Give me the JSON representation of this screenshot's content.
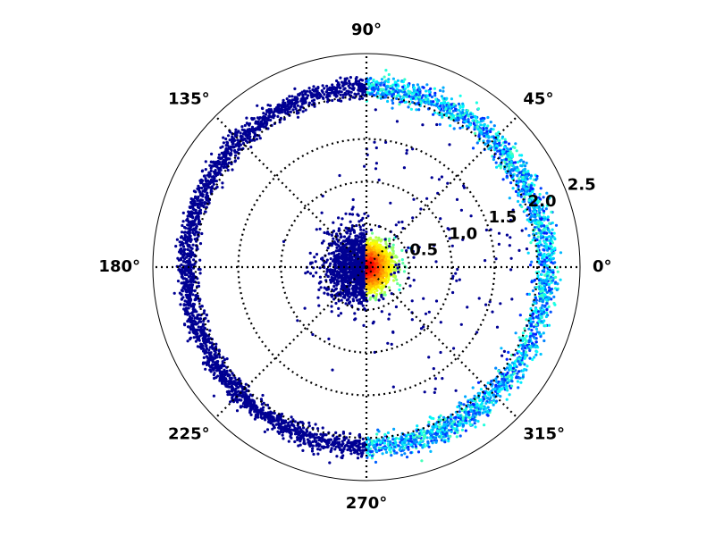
{
  "chart_data": {
    "type": "scatter",
    "projection": "polar",
    "title": "",
    "grid": true,
    "theta_ticks": [
      {
        "deg": 0,
        "label": "0°"
      },
      {
        "deg": 45,
        "label": "45°"
      },
      {
        "deg": 90,
        "label": "90°"
      },
      {
        "deg": 135,
        "label": "135°"
      },
      {
        "deg": 180,
        "label": "180°"
      },
      {
        "deg": 225,
        "label": "225°"
      },
      {
        "deg": 270,
        "label": "270°"
      },
      {
        "deg": 315,
        "label": "315°"
      }
    ],
    "r_ticks": [
      {
        "r": 0.5,
        "label": "0.5"
      },
      {
        "r": 1.0,
        "label": "1.0"
      },
      {
        "r": 1.5,
        "label": "1.5"
      },
      {
        "r": 2.0,
        "label": "2.0"
      },
      {
        "r": 2.5,
        "label": "2.5"
      }
    ],
    "r_range": [
      0,
      2.5
    ],
    "r_tick_label_angle_deg": 22.5,
    "colormap": "jet",
    "colormap_stops": [
      "#00007f",
      "#0000ff",
      "#007fff",
      "#00ffff",
      "#7fff7f",
      "#ffff00",
      "#ff7f00",
      "#ff0000",
      "#7f0000"
    ],
    "groups": [
      {
        "name": "",
        "theta_range_deg": [
          90,
          270
        ],
        "r_center": 2.1,
        "r_spread": 0.11,
        "color_value": 0.02,
        "approx_points": 2200,
        "description_of_color": "uniform dark blue"
      },
      {
        "name": "",
        "theta_range_deg": [
          -90,
          90
        ],
        "r_center": 2.1,
        "r_spread": 0.13,
        "color_value_range": [
          0.15,
          0.45
        ],
        "approx_points": 2200,
        "description_of_color": "blue to cyan, varying"
      },
      {
        "name": "",
        "theta_range_deg": [
          90,
          270
        ],
        "r_center": 0.0,
        "r_spread": 0.36,
        "color_value": 0.02,
        "approx_points": 1100,
        "description_of_color": "uniform dark blue"
      },
      {
        "name": "",
        "theta_range_deg": [
          -90,
          90
        ],
        "r_center": 0.0,
        "r_spread": 0.22,
        "color_value_range": [
          0.7,
          0.95
        ],
        "approx_points": 1400,
        "description_of_color": "red/orange, hot core"
      },
      {
        "name": "",
        "theta_range_deg": [
          -90,
          90
        ],
        "r_range": [
          0.3,
          1.9
        ],
        "color_value": 0.02,
        "approx_points": 140,
        "description_of_color": "sparse dark blue outliers"
      },
      {
        "name": "",
        "theta_range_deg": [
          90,
          270
        ],
        "r_range": [
          0.3,
          1.5
        ],
        "color_value": 0.02,
        "approx_points": 12,
        "description_of_color": "sparse dark blue outliers"
      }
    ]
  }
}
